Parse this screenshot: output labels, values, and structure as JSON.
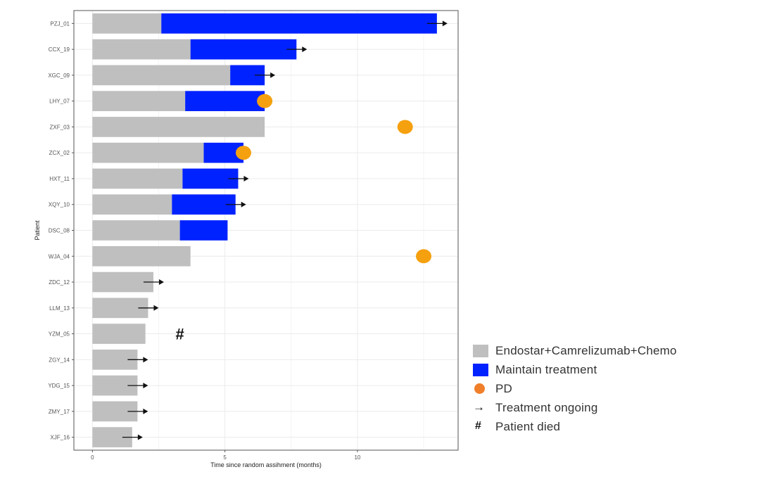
{
  "chart_data": {
    "type": "bar",
    "orientation": "horizontal",
    "stacked": true,
    "title": "",
    "xlabel": "Time since random assihment (months)",
    "ylabel": "Patient",
    "xlim": [
      -0.7,
      13.8
    ],
    "xticks": [
      0,
      5,
      10
    ],
    "grid": true,
    "colors": {
      "induction": "#bfbfbf",
      "maintain": "#0022ff",
      "pd": "#f5a00e",
      "arrow": "#111111",
      "frame": "#555555",
      "grid": "#ebebeb"
    },
    "categories": [
      "PZJ_01",
      "CCX_19",
      "XGC_09",
      "LHY_07",
      "ZXF_03",
      "ZCX_02",
      "HXT_11",
      "XQY_10",
      "DSC_08",
      "WJA_04",
      "ZDC_12",
      "LLM_13",
      "YZM_05",
      "ZGY_14",
      "YDG_15",
      "ZMY_17",
      "XJF_16"
    ],
    "series": [
      {
        "name": "Endostar+Camrelizumab+Chemo",
        "values": [
          2.6,
          3.7,
          5.2,
          3.5,
          6.5,
          4.2,
          3.4,
          3.0,
          3.3,
          3.7,
          2.3,
          2.1,
          2.0,
          1.7,
          1.7,
          1.7,
          1.5
        ]
      },
      {
        "name": "Maintain treatment",
        "values": [
          10.4,
          4.0,
          1.3,
          3.0,
          0,
          1.5,
          2.1,
          2.4,
          1.8,
          0,
          0,
          0,
          0,
          0,
          0,
          0,
          0
        ]
      }
    ],
    "pd_events": [
      {
        "patient": "LHY_07",
        "x": 6.5
      },
      {
        "patient": "ZXF_03",
        "x": 11.8
      },
      {
        "patient": "ZCX_02",
        "x": 5.7
      },
      {
        "patient": "WJA_04",
        "x": 12.5
      }
    ],
    "ongoing": [
      "PZJ_01",
      "CCX_19",
      "XGC_09",
      "HXT_11",
      "XQY_10",
      "ZDC_12",
      "LLM_13",
      "ZGY_14",
      "YDG_15",
      "ZMY_17",
      "XJF_16"
    ],
    "died": [
      {
        "patient": "YZM_05",
        "x": 3.3
      }
    ],
    "died_symbol": "#",
    "legend": {
      "position": "bottom-right",
      "items": [
        {
          "label": "Endostar+Camrelizumab+Chemo",
          "kind": "swatch",
          "color": "#bfbfbf"
        },
        {
          "label": "Maintain treatment",
          "kind": "swatch",
          "color": "#0022ff"
        },
        {
          "label": "PD",
          "kind": "dot",
          "color": "#f07f2a"
        },
        {
          "label": "Treatment ongoing",
          "kind": "arrow",
          "symbol": "→"
        },
        {
          "label": "Patient died",
          "kind": "hash",
          "symbol": "#"
        }
      ]
    }
  }
}
